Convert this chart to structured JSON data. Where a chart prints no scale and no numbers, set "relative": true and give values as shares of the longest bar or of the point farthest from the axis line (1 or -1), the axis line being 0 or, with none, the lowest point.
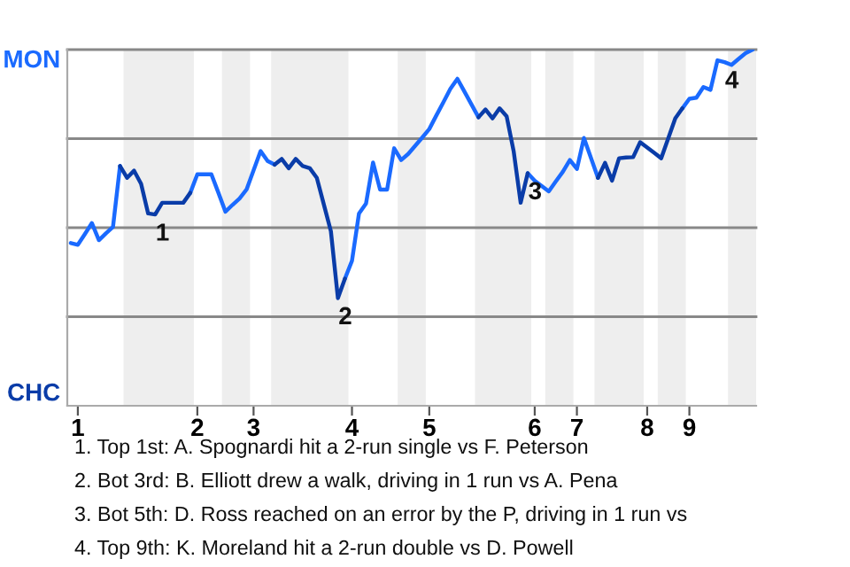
{
  "chart_data": {
    "type": "line",
    "relative": true,
    "categories": [
      null,
      "1",
      null,
      null,
      null,
      null,
      null,
      null,
      null,
      null,
      null,
      null,
      null,
      null,
      null,
      null,
      null,
      null,
      "2",
      null,
      null,
      null,
      null,
      null,
      null,
      null,
      "3",
      null,
      null,
      null,
      null,
      null,
      null,
      null,
      null,
      null,
      null,
      null,
      null,
      null,
      "4",
      null,
      null,
      null,
      null,
      null,
      null,
      null,
      null,
      null,
      null,
      "5",
      null,
      null,
      null,
      null,
      null,
      null,
      null,
      null,
      null,
      null,
      null,
      null,
      null,
      null,
      "6",
      null,
      null,
      null,
      null,
      null,
      "7",
      null,
      null,
      null,
      null,
      null,
      null,
      null,
      null,
      null,
      "8",
      null,
      null,
      null,
      null,
      null,
      "9",
      null,
      null,
      null,
      null,
      null,
      null,
      null,
      null,
      null
    ],
    "line_style": "solid",
    "series": [
      {
        "color": "#1a6aff",
        "values": [
          0.457,
          0.452,
          0.482,
          0.513,
          0.465,
          0.484,
          0.502,
          0.673,
          null,
          null,
          null,
          null,
          null,
          null,
          null,
          null,
          null,
          0.598,
          0.65,
          0.65,
          0.65,
          0.598,
          0.545,
          0.564,
          0.582,
          0.607,
          0.661,
          0.715,
          0.687,
          0.677,
          null,
          null,
          null,
          null,
          null,
          null,
          null,
          null,
          null,
          0.357,
          0.407,
          0.54,
          0.568,
          0.683,
          0.607,
          0.607,
          0.723,
          0.69,
          0.707,
          0.73,
          0.753,
          0.777,
          0.815,
          0.852,
          0.89,
          0.918,
          0.882,
          0.846,
          0.81,
          null,
          null,
          null,
          null,
          null,
          null,
          0.653,
          0.632,
          0.617,
          0.602,
          0.63,
          0.657,
          0.69,
          0.665,
          0.752,
          0.696,
          0.64,
          null,
          null,
          null,
          null,
          null,
          null,
          null,
          null,
          null,
          null,
          null,
          0.835,
          0.862,
          0.865,
          0.895,
          0.887,
          0.97,
          0.965,
          0.957,
          0.974,
          0.99,
          1.0
        ]
      },
      {
        "color": "#0a3ca8",
        "values": [
          null,
          null,
          null,
          null,
          null,
          null,
          null,
          0.673,
          0.64,
          0.66,
          0.623,
          0.54,
          0.537,
          0.57,
          0.57,
          0.57,
          0.57,
          0.598,
          null,
          null,
          null,
          null,
          null,
          null,
          null,
          null,
          null,
          null,
          null,
          0.677,
          0.693,
          0.667,
          0.693,
          0.673,
          0.667,
          0.64,
          0.565,
          0.49,
          0.302,
          0.357,
          null,
          null,
          null,
          null,
          null,
          null,
          null,
          null,
          null,
          null,
          null,
          null,
          null,
          null,
          null,
          null,
          null,
          null,
          0.81,
          0.832,
          0.807,
          0.835,
          0.813,
          0.715,
          0.57,
          0.653,
          null,
          null,
          null,
          null,
          null,
          null,
          null,
          null,
          null,
          0.64,
          0.682,
          0.632,
          0.695,
          0.697,
          0.698,
          0.74,
          0.725,
          0.71,
          0.695,
          0.751,
          0.807,
          0.835,
          null,
          null,
          null,
          null,
          null,
          null,
          null,
          null,
          null,
          null
        ]
      }
    ],
    "ref_lines": [
      {
        "axis": "y",
        "value": 0.25,
        "color": "#888888"
      },
      {
        "axis": "y",
        "value": 0.5,
        "color": "#888888"
      },
      {
        "axis": "y",
        "value": 0.75,
        "color": "#888888"
      },
      {
        "axis": "y",
        "value": 1.0,
        "color": "#888888"
      }
    ],
    "annotations": [
      "MON",
      "CHC",
      {
        "text": "1",
        "y": 0.537
      },
      {
        "text": "2",
        "y": 0.302
      },
      {
        "text": "3",
        "y": 0.653
      },
      {
        "text": "4",
        "y": 0.965
      },
      "1. Top 1st: A. Spognardi hit a 2-run single vs F. Peterson",
      "2. Bot 3rd: B. Elliott drew a walk, driving in 1 run vs A. Pena",
      "3. Bot 5th: D. Ross reached on an error by the P, driving in 1 run vs",
      "4. Top 9th: K. Moreland hit a 2-run double vs D. Powell"
    ]
  }
}
